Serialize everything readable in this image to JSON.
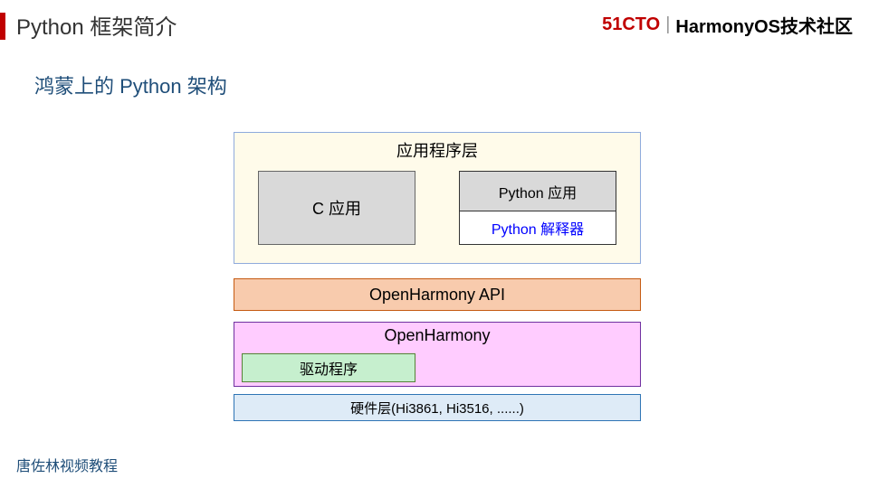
{
  "header": {
    "title": "Python 框架简介",
    "brand_red": "51CTO",
    "brand_sep": "|",
    "brand_text": "HarmonyOS技术社区"
  },
  "subtitle": "鸿蒙上的 Python 架构",
  "diagram": {
    "app_layer": {
      "title": "应用程序层",
      "bg_color": "#fffbea",
      "border_color": "#8faadc",
      "c_app": {
        "label": "C 应用",
        "bg_color": "#d9d9d9",
        "border_color": "#666666"
      },
      "python_app": {
        "label": "Python 应用",
        "bg_color": "#d9d9d9"
      },
      "python_interp": {
        "label": "Python 解释器",
        "text_color": "#0000ff",
        "bg_color": "#ffffff"
      },
      "python_border_color": "#333333"
    },
    "api_layer": {
      "label": "OpenHarmony API",
      "bg_color": "#f8cbad",
      "border_color": "#c55a11"
    },
    "oh_layer": {
      "label": "OpenHarmony",
      "bg_color": "#ffccff",
      "border_color": "#7030a0",
      "driver": {
        "label": "驱动程序",
        "bg_color": "#c6efce",
        "border_color": "#548235"
      }
    },
    "hw_layer": {
      "label": "硬件层(Hi3861, Hi3516, ......)",
      "bg_color": "#deebf7",
      "border_color": "#2e74b5"
    }
  },
  "footer": "唐佐林视频教程"
}
